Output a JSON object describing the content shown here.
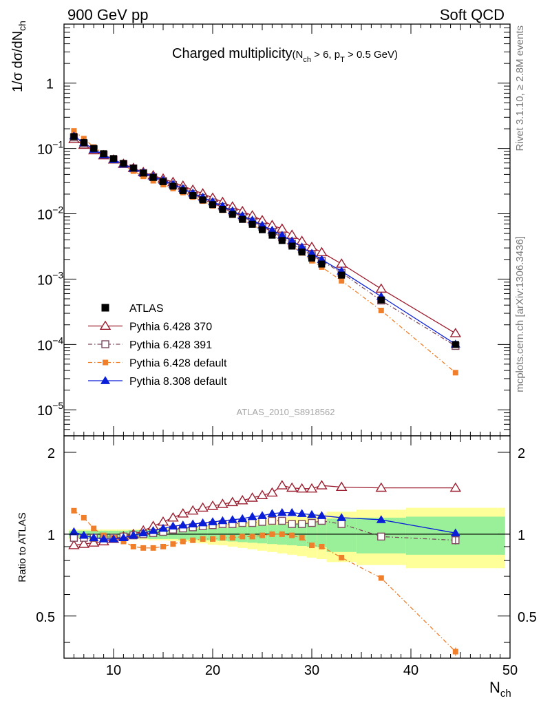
{
  "header": {
    "left": "900 GeV pp",
    "right": "Soft QCD"
  },
  "side_labels": {
    "rivet": "Rivet 3.1.10, ≥ 2.8M events",
    "mcplots": "mcplots.cern.ch [arXiv:1306.3436]"
  },
  "plot": {
    "title_main": "Charged multiplicity",
    "title_sub": "(N",
    "title_sub_ch": "ch",
    "title_sub_mid": " > 6, p",
    "title_sub_T": "T",
    "title_sub_end": " > 0.5 GeV)",
    "watermark": "ATLAS_2010_S8918562",
    "ylabel_top": "1/σ dσ/dN",
    "ylabel_top_sub": "ch",
    "ylabel_bottom": "Ratio to ATLAS",
    "xlabel": "N",
    "xlabel_sub": "ch"
  },
  "chart_data": {
    "type": "scatter",
    "title": "Charged multiplicity (Nch > 6, pT > 0.5 GeV)",
    "xlim": [
      5,
      50
    ],
    "ylim_top": [
      4e-06,
      8
    ],
    "yscale_top": "log",
    "ylim_bottom": [
      0.35,
      2.3
    ],
    "yscale_bottom": "log",
    "grid": false,
    "legend_position": "middle-left",
    "x_ticks": [
      "10",
      "20",
      "30",
      "40",
      "50"
    ],
    "y_ticks_top": [
      {
        "base": "10",
        "exp": "−5",
        "value": 1e-05
      },
      {
        "base": "10",
        "exp": "−4",
        "value": 0.0001
      },
      {
        "base": "10",
        "exp": "−3",
        "value": 0.001
      },
      {
        "base": "10",
        "exp": "−2",
        "value": 0.01
      },
      {
        "base": "10",
        "exp": "−1",
        "value": 0.1
      },
      {
        "base": "1",
        "exp": "",
        "value": 1
      }
    ],
    "y_ticks_bottom": [
      "0.5",
      "1",
      "2"
    ],
    "x": [
      6,
      7,
      8,
      9,
      10,
      11,
      12,
      13,
      14,
      15,
      16,
      17,
      18,
      19,
      20,
      21,
      22,
      23,
      24,
      25,
      26,
      27,
      28,
      29,
      30,
      31,
      33,
      37,
      44.5
    ],
    "band_edges": [
      5.5,
      6.5,
      7.5,
      8.5,
      9.5,
      10.5,
      11.5,
      12.5,
      13.5,
      14.5,
      15.5,
      16.5,
      17.5,
      18.5,
      19.5,
      20.5,
      21.5,
      22.5,
      23.5,
      24.5,
      25.5,
      26.5,
      27.5,
      28.5,
      29.5,
      30.5,
      31.5,
      34.5,
      39.5,
      49.5
    ],
    "band_stat": [
      0.03,
      0.03,
      0.03,
      0.03,
      0.03,
      0.03,
      0.035,
      0.035,
      0.04,
      0.04,
      0.04,
      0.045,
      0.045,
      0.05,
      0.05,
      0.055,
      0.06,
      0.065,
      0.07,
      0.075,
      0.08,
      0.085,
      0.09,
      0.095,
      0.1,
      0.105,
      0.14,
      0.15,
      0.16
    ],
    "band_total": [
      0.04,
      0.04,
      0.04,
      0.04,
      0.04,
      0.04,
      0.04,
      0.045,
      0.05,
      0.05,
      0.055,
      0.06,
      0.07,
      0.075,
      0.085,
      0.09,
      0.1,
      0.11,
      0.12,
      0.13,
      0.14,
      0.15,
      0.16,
      0.17,
      0.18,
      0.19,
      0.21,
      0.23,
      0.25
    ],
    "series": [
      {
        "name": "ATLAS",
        "color": "#000000",
        "marker": "square-filled",
        "values": [
          0.152,
          0.123,
          0.1,
          0.083,
          0.07,
          0.059,
          0.05,
          0.042,
          0.036,
          0.031,
          0.0265,
          0.0225,
          0.019,
          0.0163,
          0.0138,
          0.0117,
          0.0098,
          0.0082,
          0.0069,
          0.0057,
          0.0047,
          0.0039,
          0.0032,
          0.0026,
          0.0021,
          0.0017,
          0.00115,
          0.00048,
          0.0001
        ]
      },
      {
        "name": "Pythia 6.428 370",
        "color": "#9b1c2e",
        "marker": "triangle-open",
        "line": "solid",
        "ratio": [
          0.91,
          0.92,
          0.93,
          0.94,
          0.96,
          0.98,
          1.0,
          1.03,
          1.07,
          1.11,
          1.15,
          1.19,
          1.22,
          1.25,
          1.27,
          1.29,
          1.31,
          1.33,
          1.36,
          1.39,
          1.42,
          1.51,
          1.48,
          1.47,
          1.47,
          1.51,
          1.49,
          1.48,
          1.48
        ]
      },
      {
        "name": "Pythia 6.428 391",
        "color": "#7e4a5e",
        "marker": "square-open",
        "line": "dashdot",
        "ratio": [
          0.97,
          0.97,
          0.97,
          0.97,
          0.97,
          0.98,
          0.99,
          1.0,
          1.01,
          1.02,
          1.04,
          1.05,
          1.06,
          1.07,
          1.08,
          1.09,
          1.09,
          1.1,
          1.1,
          1.11,
          1.12,
          1.12,
          1.09,
          1.09,
          1.1,
          1.12,
          1.09,
          0.98,
          0.95
        ]
      },
      {
        "name": "Pythia 6.428 default",
        "color": "#f07f2c",
        "marker": "square-filled",
        "line": "dashdot",
        "ratio": [
          1.22,
          1.15,
          1.05,
          0.99,
          0.97,
          0.94,
          0.9,
          0.89,
          0.89,
          0.9,
          0.92,
          0.94,
          0.95,
          0.96,
          0.96,
          0.97,
          0.97,
          0.98,
          0.98,
          0.99,
          1.0,
          1.0,
          0.99,
          0.97,
          0.91,
          0.9,
          0.82,
          0.69,
          0.37
        ]
      },
      {
        "name": "Pythia 8.308 default",
        "color": "#0a1ed7",
        "marker": "triangle-filled",
        "line": "solid",
        "ratio": [
          1.02,
          0.99,
          0.97,
          0.96,
          0.96,
          0.97,
          0.99,
          1.01,
          1.03,
          1.05,
          1.07,
          1.08,
          1.09,
          1.1,
          1.11,
          1.12,
          1.13,
          1.14,
          1.16,
          1.17,
          1.19,
          1.2,
          1.2,
          1.19,
          1.18,
          1.17,
          1.15,
          1.13,
          1.01
        ]
      }
    ]
  }
}
